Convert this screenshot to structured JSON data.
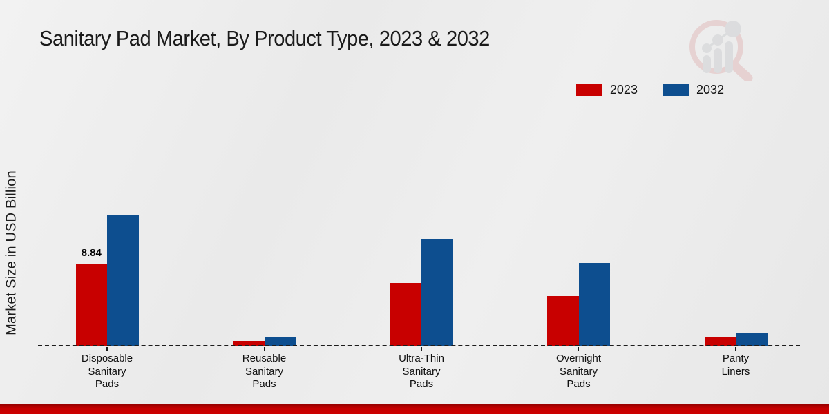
{
  "title": "Sanitary Pad Market, By Product Type, 2023 & 2032",
  "ylabel": "Market Size in USD Billion",
  "legend": {
    "items": [
      {
        "label": "2023",
        "color": "#c80000"
      },
      {
        "label": "2032",
        "color": "#0d4e8f"
      }
    ]
  },
  "colors": {
    "series_2023": "#c80000",
    "series_2032": "#0d4e8f",
    "text": "#1a1a1a",
    "bottom_strip": "#c40000",
    "background": "#ebebeb"
  },
  "watermark": {
    "icon": "market-research-magnifier-bar-chart-logo"
  },
  "chart_data": {
    "type": "bar",
    "title": "Sanitary Pad Market, By Product Type, 2023 & 2032",
    "xlabel": "",
    "ylabel": "Market Size in USD Billion",
    "categories": [
      "Disposable Sanitary Pads",
      "Reusable Sanitary Pads",
      "Ultra-Thin Sanitary Pads",
      "Overnight Sanitary Pads",
      "Panty Liners"
    ],
    "series": [
      {
        "name": "2023",
        "color": "#c80000",
        "values": [
          8.84,
          0.6,
          6.8,
          5.4,
          0.95
        ]
      },
      {
        "name": "2032",
        "color": "#0d4e8f",
        "values": [
          14.1,
          1.0,
          11.5,
          8.9,
          1.4
        ]
      }
    ],
    "data_labels": [
      {
        "series": "2023",
        "category_index": 0,
        "text": "8.84"
      }
    ],
    "ylim": [
      0,
      16
    ],
    "grid": false,
    "y_axis_ticks_visible": false,
    "baseline_style": "dashed",
    "legend_position": "top-right"
  }
}
